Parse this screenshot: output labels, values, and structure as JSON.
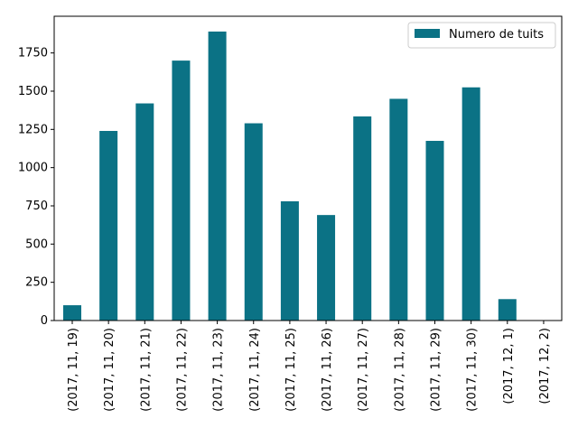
{
  "chart_data": {
    "type": "bar",
    "categories": [
      "(2017, 11, 19)",
      "(2017, 11, 20)",
      "(2017, 11, 21)",
      "(2017, 11, 22)",
      "(2017, 11, 23)",
      "(2017, 11, 24)",
      "(2017, 11, 25)",
      "(2017, 11, 26)",
      "(2017, 11, 27)",
      "(2017, 11, 28)",
      "(2017, 11, 29)",
      "(2017, 11, 30)",
      "(2017, 12, 1)",
      "(2017, 12, 2)"
    ],
    "series": [
      {
        "name": "Numero de tuits",
        "color": "#0b7285",
        "values": [
          100,
          1240,
          1420,
          1700,
          1890,
          1290,
          780,
          690,
          1335,
          1450,
          1175,
          1525,
          140,
          0
        ]
      }
    ],
    "yticks": [
      "0",
      "250",
      "500",
      "750",
      "1000",
      "1250",
      "1500",
      "1750"
    ],
    "ylim": [
      0,
      1990
    ],
    "legend_position": "top-right",
    "grid": false
  }
}
